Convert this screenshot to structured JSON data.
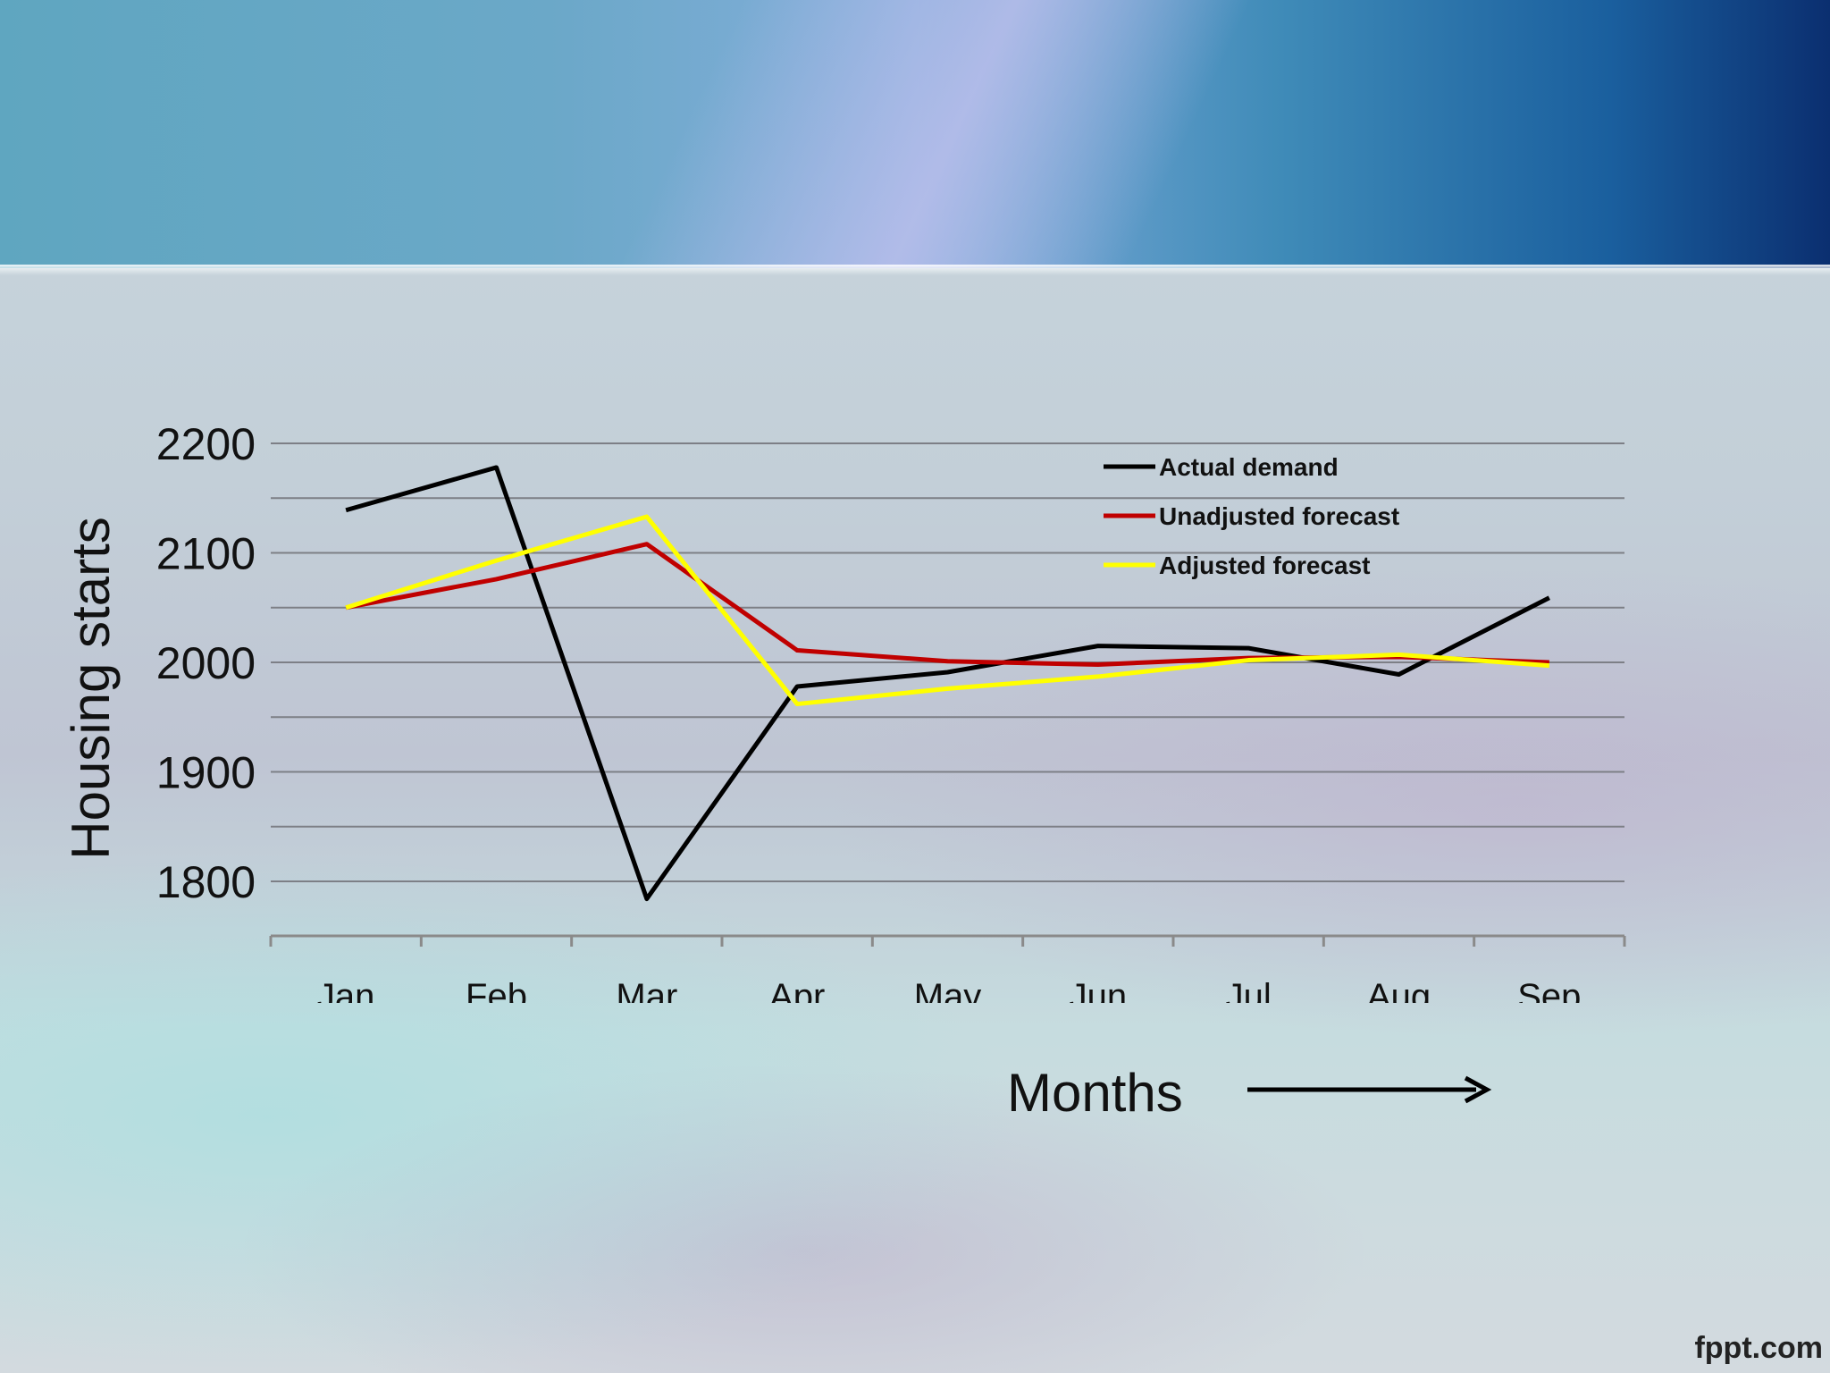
{
  "chart_data": {
    "type": "line",
    "categories": [
      "Jan",
      "Feb",
      "Mar",
      "Apr",
      "May",
      "Jun",
      "Jul",
      "Aug",
      "Sep"
    ],
    "series": [
      {
        "name": "Actual demand",
        "color": "#000000",
        "values": [
          2139,
          2178,
          1784,
          1978,
          1991,
          2015,
          2013,
          1989,
          2059
        ]
      },
      {
        "name": "Unadjusted forecast",
        "color": "#c00000",
        "values": [
          2050,
          2076,
          2108,
          2011,
          2001,
          1998,
          2004,
          2005,
          2000
        ]
      },
      {
        "name": "Adjusted forecast",
        "color": "#ffff00",
        "values": [
          2050,
          2093,
          2133,
          1962,
          1976,
          1987,
          2002,
          2007,
          1997
        ]
      }
    ],
    "xlabel": "Months",
    "ylabel": "Housing starts",
    "ylim": [
      1750,
      2200
    ],
    "yticks": [
      1800,
      1900,
      2000,
      2100,
      2200
    ],
    "grid": true,
    "legend_position": "top-right"
  },
  "watermark": "fppt.com",
  "icons": {
    "arrow": "right-arrow-icon"
  }
}
